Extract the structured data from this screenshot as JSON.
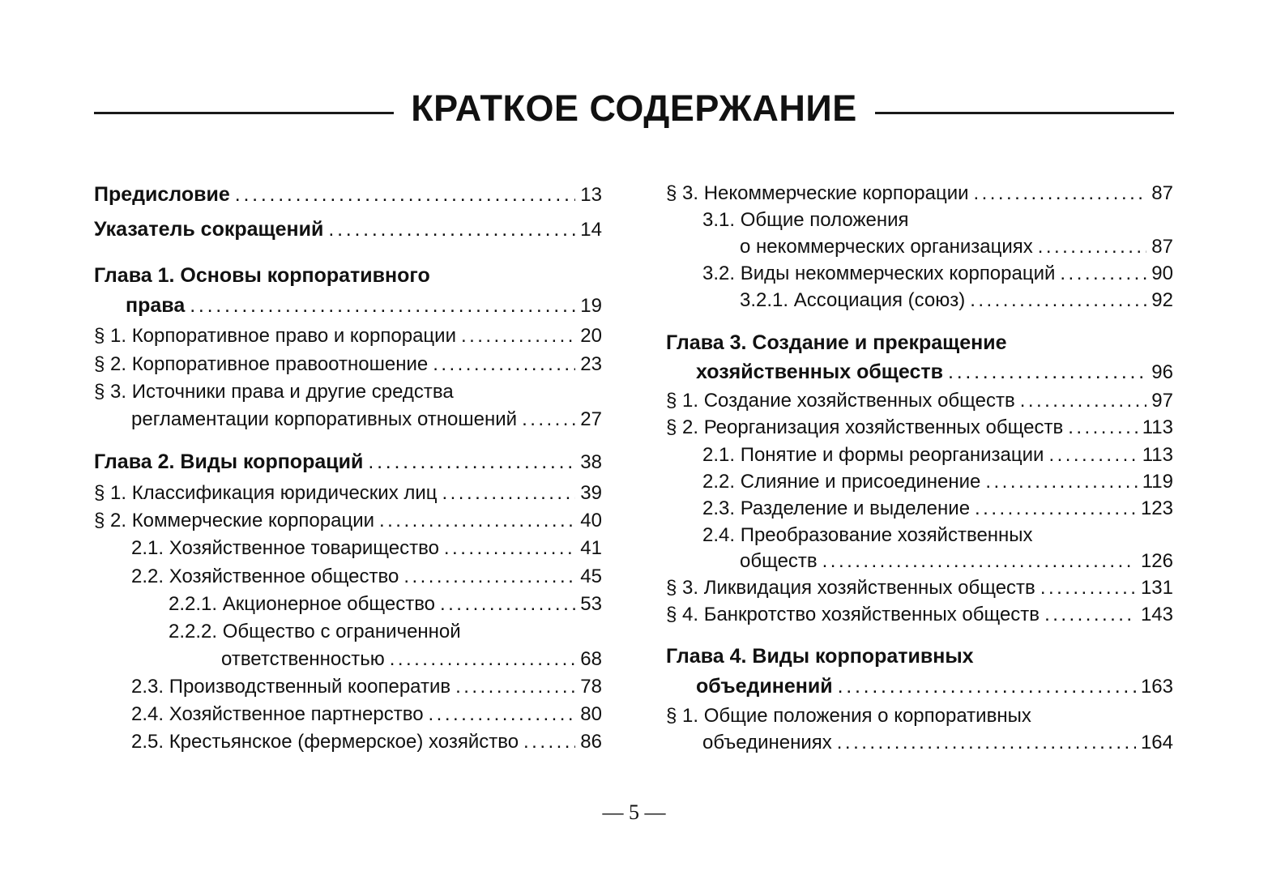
{
  "title": "КРАТКОЕ СОДЕРЖАНИЕ",
  "page_number": "— 5 —",
  "columns": [
    [
      {
        "bold": true,
        "lines": [
          "Предисловие"
        ],
        "page": "13"
      },
      {
        "bold": true,
        "lines": [
          "Указатель сокращений"
        ],
        "page": "14"
      },
      {
        "bold": true,
        "lines": [
          "Глава 1. Основы корпоративного",
          "права"
        ],
        "page": "19"
      },
      {
        "bold": false,
        "lines": [
          "§ 1. Корпоративное право и корпорации"
        ],
        "page": "20"
      },
      {
        "bold": false,
        "lines": [
          "§ 2. Корпоративное правоотношение"
        ],
        "page": "23"
      },
      {
        "bold": false,
        "lines": [
          "§ 3. Источники права и другие средства",
          "регламентации корпоративных отношений"
        ],
        "page": "27"
      },
      {
        "bold": true,
        "lines": [
          "Глава 2. Виды корпораций"
        ],
        "page": "38"
      },
      {
        "bold": false,
        "lines": [
          "§ 1. Классификация юридических лиц"
        ],
        "page": "39"
      },
      {
        "bold": false,
        "lines": [
          "§ 2. Коммерческие корпорации"
        ],
        "page": "40"
      },
      {
        "bold": false,
        "lines": [
          "2.1. Хозяйственное товарищество"
        ],
        "page": "41"
      },
      {
        "bold": false,
        "lines": [
          "2.2. Хозяйственное общество"
        ],
        "page": "45"
      },
      {
        "bold": false,
        "lines": [
          "2.2.1. Акционерное общество"
        ],
        "page": "53"
      },
      {
        "bold": false,
        "lines": [
          "2.2.2. Общество с ограниченной",
          "ответственностью"
        ],
        "page": "68"
      },
      {
        "bold": false,
        "lines": [
          "2.3. Производственный кооператив"
        ],
        "page": "78"
      },
      {
        "bold": false,
        "lines": [
          "2.4. Хозяйственное партнерство"
        ],
        "page": "80"
      },
      {
        "bold": false,
        "lines": [
          "2.5. Крестьянское (фермерское) хозяйство"
        ],
        "page": "86"
      }
    ],
    [
      {
        "bold": false,
        "lines": [
          "§ 3. Некоммерческие корпорации"
        ],
        "page": "87"
      },
      {
        "bold": false,
        "lines": [
          "3.1. Общие положения",
          "о некоммерческих организациях"
        ],
        "page": "87"
      },
      {
        "bold": false,
        "lines": [
          "3.2. Виды некоммерческих корпораций"
        ],
        "page": "90"
      },
      {
        "bold": false,
        "lines": [
          "3.2.1. Ассоциация (союз)"
        ],
        "page": "92"
      },
      {
        "bold": true,
        "lines": [
          "Глава 3. Создание и прекращение",
          "хозяйственных обществ"
        ],
        "page": "96"
      },
      {
        "bold": false,
        "lines": [
          "§ 1. Создание хозяйственных обществ"
        ],
        "page": "97"
      },
      {
        "bold": false,
        "lines": [
          "§ 2. Реорганизация хозяйственных обществ"
        ],
        "page": "113"
      },
      {
        "bold": false,
        "lines": [
          "2.1. Понятие и формы реорганизации"
        ],
        "page": "113"
      },
      {
        "bold": false,
        "lines": [
          "2.2. Слияние и присоединение"
        ],
        "page": "119"
      },
      {
        "bold": false,
        "lines": [
          "2.3. Разделение и выделение"
        ],
        "page": "123"
      },
      {
        "bold": false,
        "lines": [
          "2.4. Преобразование хозяйственных",
          "обществ"
        ],
        "page": "126"
      },
      {
        "bold": false,
        "lines": [
          "§ 3. Ликвидация хозяйственных обществ"
        ],
        "page": "131"
      },
      {
        "bold": false,
        "lines": [
          "§ 4. Банкротство хозяйственных обществ"
        ],
        "page": "143"
      },
      {
        "bold": true,
        "lines": [
          "Глава 4. Виды корпоративных",
          "объединений"
        ],
        "page": "163"
      },
      {
        "bold": false,
        "lines": [
          "§ 1. Общие положения о корпоративных",
          "объединениях"
        ],
        "page": "164"
      }
    ]
  ]
}
